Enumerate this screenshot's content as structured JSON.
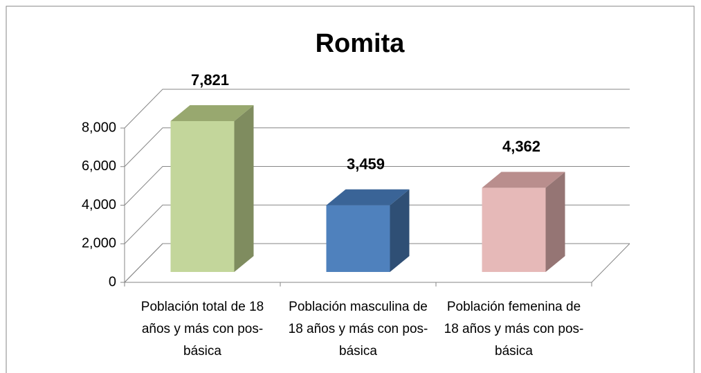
{
  "chart_data": {
    "type": "bar3d",
    "title": "Romita",
    "categories": [
      "Población total de 18 años y más con pos-básica",
      "Población masculina de 18 años y más con pos-básica",
      "Población femenina de 18 años y más con pos-básica"
    ],
    "values": [
      7821,
      3459,
      4362
    ],
    "value_labels": [
      "7,821",
      "3,459",
      "4,362"
    ],
    "colors": [
      "#c3d69b",
      "#4f81bd",
      "#e6b9b8"
    ],
    "side_colors": [
      "#7f8c5f",
      "#2f4f75",
      "#957574"
    ],
    "top_colors": [
      "#98a86f",
      "#3a6497",
      "#b98e8d"
    ],
    "ylim": [
      0,
      8000
    ],
    "yticks": [
      0,
      {
        "value": 2000,
        "label": "2,000"
      },
      {
        "value": 4000,
        "label": "4,000"
      },
      {
        "value": 6000,
        "label": "6,000"
      },
      {
        "value": 8000,
        "label": "8,000"
      }
    ],
    "grid": true
  }
}
